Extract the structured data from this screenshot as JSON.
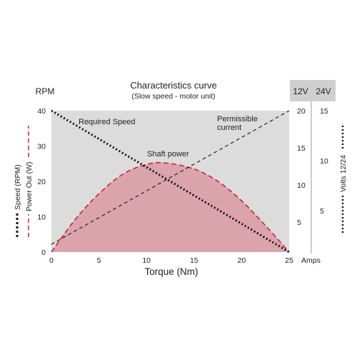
{
  "chart_data": {
    "type": "line",
    "title": "Characteristics curve",
    "subtitle": "(Slow speed - motor unit)",
    "xlabel": "Torque (Nm)",
    "xlim": [
      0,
      25
    ],
    "x_ticks": [
      0,
      5,
      10,
      15,
      20,
      25
    ],
    "left_axis": {
      "unit": "RPM",
      "ylim": [
        0,
        40
      ],
      "ticks": [
        0,
        10,
        20,
        30,
        40
      ],
      "legend_speed": "Speed (RPM)",
      "legend_power": "Power Out (W)"
    },
    "right_axis_12v": {
      "unit": "12V",
      "ticks": [
        5,
        10,
        15,
        20
      ]
    },
    "right_axis_24v": {
      "unit": "24V",
      "ticks": [
        5,
        10,
        15
      ]
    },
    "amps_label": "Amps",
    "volts_label": "Volts 12/24",
    "series": [
      {
        "name": "Required Speed",
        "style": "dotted",
        "color": "#111111",
        "x": [
          0,
          25
        ],
        "y": [
          40,
          0
        ]
      },
      {
        "name": "Permissible current",
        "style": "dashed",
        "color": "#222222",
        "x": [
          0,
          25
        ],
        "y": [
          2,
          20
        ],
        "axis": "right_12v"
      },
      {
        "name": "Shaft power",
        "style": "dashed-filled",
        "color": "#cc2233",
        "fill": "#dba4ad",
        "x": [
          0,
          2.5,
          5,
          7.5,
          10,
          12,
          15,
          17.5,
          20,
          22.5,
          25
        ],
        "y": [
          0,
          9.2,
          16.5,
          22,
          24.8,
          25.2,
          23.5,
          20,
          14.5,
          7.5,
          0
        ]
      }
    ],
    "annotations": [
      "Required Speed",
      "Permissible current",
      "Shaft power"
    ],
    "grid": false,
    "colors": {
      "plot_bg": "#dcdcdc",
      "header_bg": "#cfcfcf",
      "power_line": "#cc2233",
      "power_fill": "#dba4ad"
    }
  }
}
